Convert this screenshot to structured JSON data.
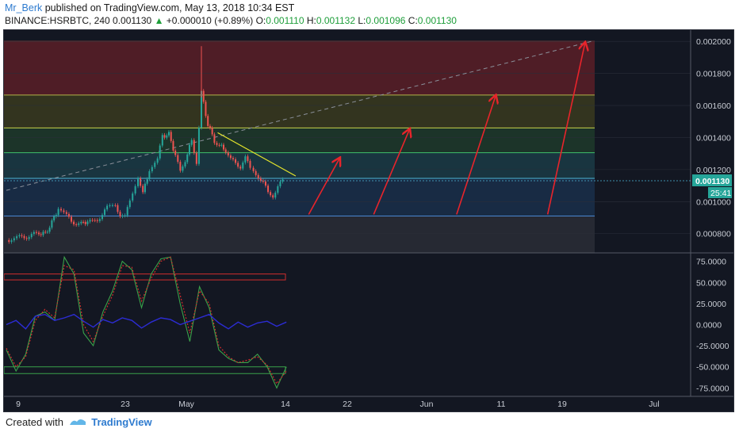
{
  "header": {
    "author": "Mr_Berk",
    "published": "published on TradingView.com, May 13, 2018 10:34 EST",
    "symbol": "BINANCE:HSRBTC, 240",
    "last": "0.001130",
    "change": "+0.000010 (+0.89%)",
    "o_label": "O:",
    "o": "0.001110",
    "h_label": "H:",
    "h": "0.001132",
    "l_label": "L:",
    "l": "0.001096",
    "c_label": "C:",
    "c": "0.001130"
  },
  "footer": {
    "created": "Created with",
    "brand": "TradingView"
  },
  "colors": {
    "bg": "#131722",
    "up": "#26a69a",
    "down": "#ef5350",
    "fib_red": "#5a1f27",
    "fib_olive": "#3a3a1e",
    "fib_green": "#1f3a2a",
    "fib_teal": "#1b3b45",
    "fib_blue": "#1a2f4a",
    "fib_gray": "#2a2d36",
    "arrow": "#e8242b",
    "trend": "#e6e62b",
    "dash": "#8a8f99",
    "stoch": "#3aa14a",
    "stoch_sig": "#d12d2d",
    "macd": "#2c2cd4"
  },
  "chart_data": [
    {
      "type": "line",
      "subtype": "candlestick",
      "symbol": "BINANCE:HSRBTC",
      "interval": "240",
      "price_axis_ticks": [
        "0.002000",
        "0.001800",
        "0.001600",
        "0.001400",
        "0.001200",
        "0.001000",
        "0.000800"
      ],
      "last_price_label": "0.001130",
      "countdown_label": "25:41",
      "time_axis_labels": [
        "9",
        "23",
        "May",
        "14",
        "22",
        "Jun",
        "11",
        "19",
        "Jul"
      ],
      "ylim": [
        0.00068,
        0.00207
      ],
      "close_path_x": [
        0,
        8,
        14,
        20,
        24,
        28,
        32,
        37,
        40,
        46,
        50,
        53,
        56,
        59,
        62,
        67,
        70,
        73,
        76,
        81,
        84,
        88,
        93,
        96,
        100,
        104,
        107,
        110,
        114,
        117,
        120,
        124,
        128,
        131,
        135,
        138,
        141,
        144,
        147,
        150,
        152,
        155,
        158,
        161,
        164,
        167,
        170
      ],
      "close_path_y": [
        0.00076,
        0.000775,
        0.000785,
        0.000805,
        0.0008,
        0.00087,
        0.00096,
        0.00091,
        0.000875,
        0.00086,
        0.00088,
        0.00087,
        0.00089,
        0.00092,
        0.00096,
        0.00098,
        0.00092,
        0.0009,
        0.00101,
        0.00116,
        0.00105,
        0.0012,
        0.00126,
        0.00141,
        0.00142,
        0.00129,
        0.00118,
        0.00126,
        0.00138,
        0.00125,
        0.00168,
        0.00148,
        0.00138,
        0.00135,
        0.00132,
        0.00126,
        0.00124,
        0.00122,
        0.00127,
        0.00121,
        0.00118,
        0.00116,
        0.00112,
        0.00105,
        0.00104,
        0.00109,
        0.00113
      ],
      "spike_high": 0.00197,
      "spike_x": 120,
      "fib_levels": [
        0.002,
        0.001665,
        0.00146,
        0.001305,
        0.001145,
        0.00091,
        0.00068
      ],
      "trendline": [
        [
          130,
          0.00143
        ],
        [
          178,
          0.00116
        ]
      ],
      "dashed_line": [
        [
          0,
          0.00107
        ],
        [
          360,
          0.002
        ]
      ],
      "arrows": [
        [
          [
            186,
            0.00092
          ],
          [
            205,
            0.00127
          ]
        ],
        [
          [
            226,
            0.00092
          ],
          [
            248,
            0.00145
          ]
        ],
        [
          [
            277,
            0.00092
          ],
          [
            301,
            0.00166
          ]
        ],
        [
          [
            333,
            0.00092
          ],
          [
            356,
            0.00199
          ]
        ]
      ]
    },
    {
      "type": "line",
      "subtype": "oscillator",
      "axis_ticks": [
        "75.0000",
        "50.0000",
        "25.0000",
        "0.0000",
        "-25.0000",
        "-50.0000",
        "-75.0000"
      ],
      "ylim": [
        -85,
        85
      ],
      "x": [
        0,
        6,
        12,
        18,
        24,
        30,
        36,
        42,
        48,
        54,
        60,
        66,
        72,
        78,
        84,
        90,
        96,
        102,
        108,
        114,
        120,
        126,
        132,
        138,
        144,
        150,
        156,
        162,
        168,
        174
      ],
      "series": [
        {
          "values": [
            -30,
            -55,
            -35,
            10,
            15,
            5,
            80,
            60,
            -10,
            -25,
            15,
            40,
            75,
            65,
            20,
            60,
            78,
            80,
            25,
            -20,
            45,
            20,
            -30,
            -40,
            -45,
            -45,
            -35,
            -50,
            -75,
            -50
          ]
        },
        {
          "values": [
            -28,
            -50,
            -38,
            5,
            18,
            8,
            70,
            65,
            0,
            -20,
            10,
            35,
            70,
            68,
            28,
            55,
            75,
            80,
            35,
            -10,
            40,
            25,
            -25,
            -38,
            -45,
            -42,
            -38,
            -48,
            -70,
            -55
          ]
        },
        {
          "values": [
            0,
            5,
            -5,
            10,
            12,
            5,
            8,
            12,
            4,
            -3,
            6,
            2,
            8,
            5,
            -4,
            3,
            8,
            6,
            0,
            4,
            8,
            12,
            2,
            -5,
            3,
            -3,
            2,
            4,
            -2,
            3
          ]
        }
      ],
      "bands": [
        60,
        53,
        -50,
        -58
      ]
    }
  ]
}
